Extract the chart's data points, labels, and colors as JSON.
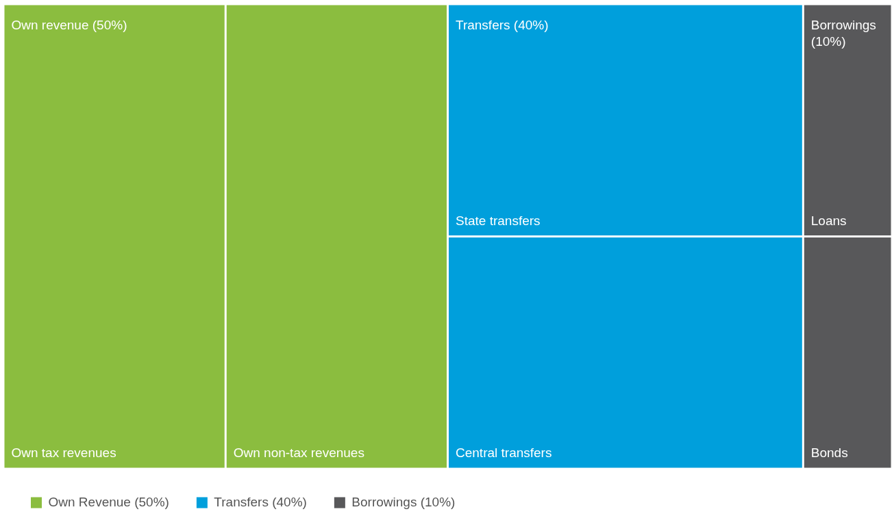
{
  "chart_data": {
    "type": "other",
    "legend": "bottom left",
    "categories": [
      "Own revenue",
      "Transfers",
      "Borrowings"
    ],
    "series": [
      {
        "name": "Own Revenue (50%)",
        "color": "#8bbd3f",
        "values": [
          50,
          null,
          null
        ],
        "value_labels": [
          "(50%)",
          null,
          null
        ]
      },
      {
        "name": "Transfers (40%)",
        "color": "#009fdc",
        "values": [
          null,
          40,
          null
        ],
        "value_labels": [
          null,
          "(40%)",
          null
        ]
      },
      {
        "name": "Borrowings (10%)",
        "color": "#58585a",
        "values": [
          null,
          null,
          10
        ],
        "value_labels": [
          null,
          null,
          "(10%)"
        ]
      }
    ],
    "annotations": [
      {
        "text": "Own tax revenues",
        "x": "Own revenue"
      },
      {
        "text": "Own non-tax revenues",
        "x": "Own revenue"
      },
      {
        "text": "State transfers",
        "x": "Transfers"
      },
      {
        "text": "Central transfers",
        "x": "Transfers"
      },
      {
        "text": "Loans",
        "x": "Borrowings"
      },
      {
        "text": "Bonds",
        "x": "Borrowings"
      }
    ]
  }
}
